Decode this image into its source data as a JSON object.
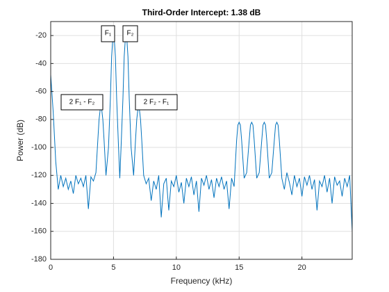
{
  "chart_data": {
    "type": "line",
    "title": "Third-Order Intercept:   1.38 dB",
    "xlabel": "Frequency (kHz)",
    "ylabel": "Power (dB)",
    "xlim": [
      0,
      24
    ],
    "ylim": [
      -180,
      -10
    ],
    "xticks": [
      0,
      5,
      10,
      15,
      20
    ],
    "yticks": [
      -180,
      -160,
      -140,
      -120,
      -100,
      -80,
      -60,
      -40,
      -20
    ],
    "grid": true,
    "annotations": [
      "F₁",
      "F₂",
      "2 F₁ - F₂",
      "2 F₂ - F₁"
    ],
    "series": [
      {
        "color": "#0072bd",
        "x": [
          0,
          0.2,
          0.4,
          0.6,
          0.8,
          1.0,
          1.2,
          1.4,
          1.6,
          1.8,
          2.0,
          2.2,
          2.4,
          2.6,
          2.8,
          3.0,
          3.2,
          3.4,
          3.6,
          3.75,
          3.85,
          3.95,
          4.0,
          4.05,
          4.15,
          4.25,
          4.4,
          4.6,
          4.75,
          4.85,
          4.95,
          5.0,
          5.05,
          5.15,
          5.25,
          5.4,
          5.5,
          5.6,
          5.75,
          5.85,
          5.95,
          6.0,
          6.05,
          6.15,
          6.25,
          6.4,
          6.6,
          6.75,
          6.85,
          6.95,
          7.0,
          7.05,
          7.15,
          7.25,
          7.4,
          7.6,
          7.8,
          8.0,
          8.2,
          8.4,
          8.6,
          8.8,
          9.0,
          9.2,
          9.4,
          9.6,
          9.8,
          10.0,
          10.2,
          10.4,
          10.6,
          10.8,
          11.0,
          11.2,
          11.4,
          11.6,
          11.8,
          12.0,
          12.2,
          12.4,
          12.6,
          12.8,
          13.0,
          13.2,
          13.4,
          13.6,
          13.8,
          14.0,
          14.2,
          14.4,
          14.6,
          14.8,
          14.9,
          15.0,
          15.1,
          15.2,
          15.4,
          15.6,
          15.8,
          15.9,
          16.0,
          16.1,
          16.2,
          16.4,
          16.6,
          16.8,
          16.9,
          17.0,
          17.1,
          17.2,
          17.4,
          17.6,
          17.8,
          17.9,
          18.0,
          18.1,
          18.2,
          18.4,
          18.6,
          18.8,
          19.0,
          19.2,
          19.4,
          19.6,
          19.8,
          20.0,
          20.2,
          20.4,
          20.6,
          20.8,
          21.0,
          21.2,
          21.4,
          21.6,
          21.8,
          22.0,
          22.2,
          22.4,
          22.6,
          22.8,
          23.0,
          23.2,
          23.4,
          23.6,
          23.8,
          24.0
        ],
        "values": [
          -48,
          -75,
          -110,
          -130,
          -120,
          -128,
          -122,
          -130,
          -124,
          -133,
          -120,
          -126,
          -122,
          -128,
          -120,
          -144,
          -121,
          -124,
          -118,
          -95,
          -80,
          -72,
          -70,
          -72,
          -80,
          -95,
          -120,
          -100,
          -65,
          -35,
          -21,
          -20,
          -21,
          -35,
          -65,
          -100,
          -122,
          -100,
          -65,
          -35,
          -21,
          -20,
          -21,
          -35,
          -65,
          -100,
          -120,
          -95,
          -80,
          -72,
          -70,
          -72,
          -80,
          -95,
          -120,
          -126,
          -122,
          -138,
          -124,
          -130,
          -120,
          -150,
          -126,
          -122,
          -145,
          -124,
          -128,
          -120,
          -132,
          -125,
          -140,
          -122,
          -128,
          -121,
          -134,
          -124,
          -146,
          -122,
          -127,
          -120,
          -130,
          -123,
          -136,
          -122,
          -128,
          -121,
          -130,
          -124,
          -144,
          -122,
          -128,
          -95,
          -84,
          -82,
          -84,
          -95,
          -122,
          -118,
          -95,
          -84,
          -82,
          -84,
          -95,
          -122,
          -118,
          -95,
          -84,
          -82,
          -84,
          -95,
          -122,
          -118,
          -95,
          -84,
          -82,
          -84,
          -95,
          -122,
          -130,
          -118,
          -125,
          -134,
          -120,
          -128,
          -122,
          -135,
          -121,
          -127,
          -120,
          -130,
          -123,
          -145,
          -124,
          -128,
          -120,
          -132,
          -122,
          -140,
          -121,
          -127,
          -124,
          -135,
          -122,
          -128,
          -120,
          -160
        ]
      }
    ]
  }
}
